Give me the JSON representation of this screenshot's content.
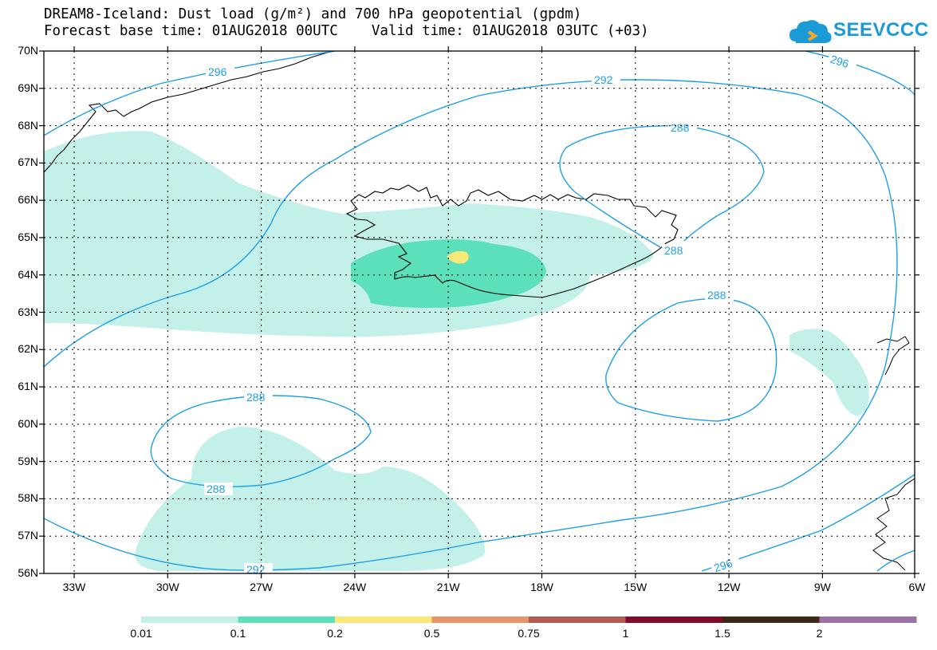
{
  "title_line1": "DREAM8-Iceland: Dust load (g/m²) and 700 hPa geopotential (gpdm)",
  "title_line2": "Forecast base time: 01AUG2018 00UTC    Valid time: 01AUG2018 03UTC (+03)",
  "logo_text": "SEEVCCC",
  "lat_labels": [
    "70N",
    "69N",
    "68N",
    "67N",
    "66N",
    "65N",
    "64N",
    "63N",
    "62N",
    "61N",
    "60N",
    "59N",
    "58N",
    "57N",
    "56N"
  ],
  "lon_labels": [
    "33W",
    "30W",
    "27W",
    "24W",
    "21W",
    "18W",
    "15W",
    "12W",
    "9W",
    "6W"
  ],
  "contour_labels": [
    "296",
    "292",
    "288",
    "288",
    "288",
    "288",
    "288",
    "292",
    "296",
    "296"
  ],
  "colorbar": {
    "ticks": [
      "0.01",
      "0.1",
      "0.2",
      "0.5",
      "0.75",
      "1",
      "1.5",
      "2"
    ],
    "colors": [
      "#c4f0ea",
      "#5ce0bc",
      "#f8e878",
      "#e8946a",
      "#b05a50",
      "#800a28",
      "#3c2814",
      "#9a72a8"
    ]
  },
  "colors": {
    "contour": "#1ea0e6",
    "grid": "#000000"
  }
}
